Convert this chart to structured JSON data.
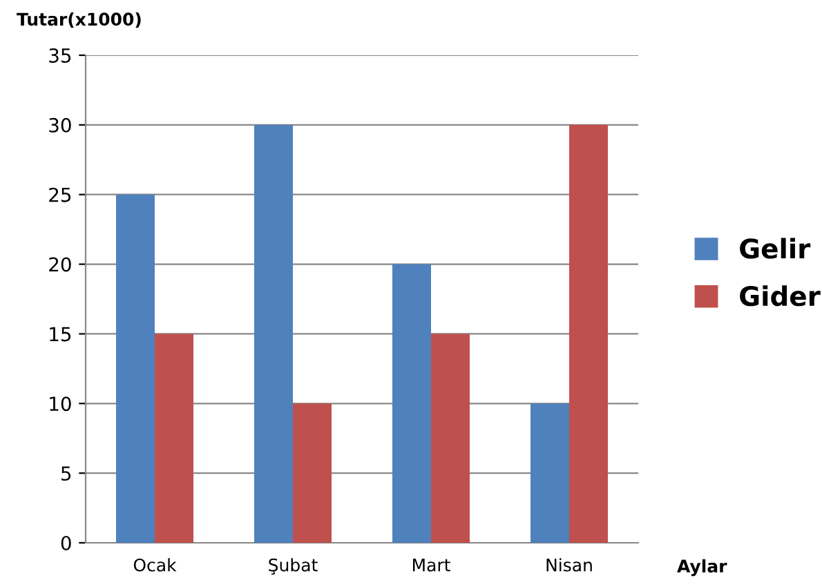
{
  "chart_data": {
    "type": "bar",
    "ylabel": "Tutar(x1000)",
    "xlabel": "Aylar",
    "categories": [
      "Ocak",
      "Şubat",
      "Mart",
      "Nisan"
    ],
    "series": [
      {
        "name": "Gelir",
        "color": "#4f81bd",
        "values": [
          25,
          30,
          20,
          10
        ]
      },
      {
        "name": "Gider",
        "color": "#c0504d",
        "values": [
          15,
          10,
          15,
          30
        ]
      }
    ],
    "ylim": [
      0,
      35
    ],
    "yticks": [
      0,
      5,
      10,
      15,
      20,
      25,
      30,
      35
    ],
    "grid": "y",
    "legend": "right"
  }
}
